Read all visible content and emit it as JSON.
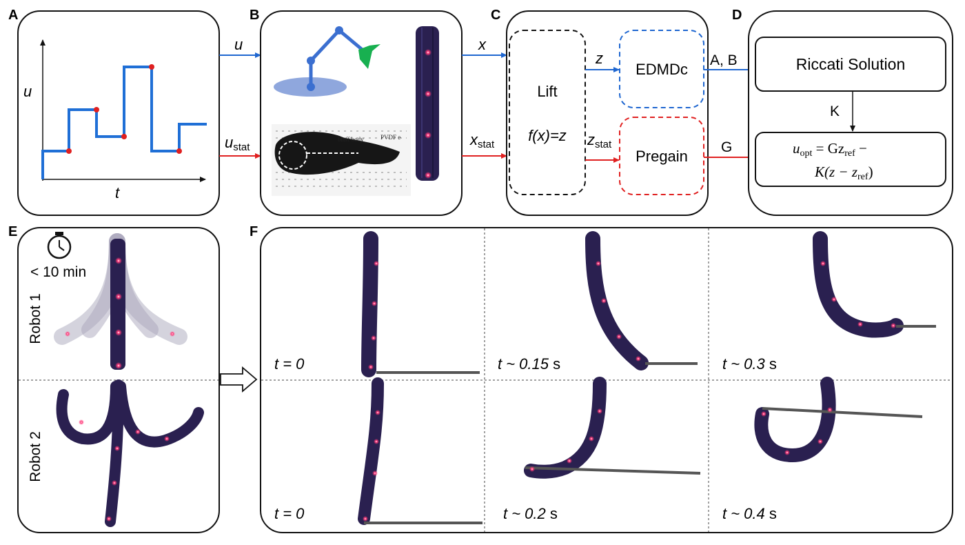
{
  "panels": {
    "a": {
      "letter": "A",
      "y_label": "u",
      "x_label": "t"
    },
    "b": {
      "letter": "B",
      "flow_text": "bluff body",
      "flow_text2": "PVDF e"
    },
    "c": {
      "letter": "C",
      "lift_title": "Lift",
      "lift_func": "f(x)=z",
      "edmdc": "EDMDc",
      "pregain": "Pregain"
    },
    "d": {
      "letter": "D",
      "riccati": "Riccati Solution",
      "k_label": "K",
      "law_line1_u": "u",
      "law_line1_sub": "opt",
      "law_line1_rest": " = Gz",
      "law_line1_sub2": "ref",
      "law_line1_end": " −",
      "law_line2_a": "K(z − z",
      "law_line2_sub": "ref",
      "law_line2_b": ")"
    },
    "e": {
      "letter": "E",
      "time_text": "< 10 min",
      "robot1": "Robot 1",
      "robot2": "Robot 2"
    },
    "f": {
      "letter": "F",
      "times": [
        "t = 0",
        "t ~ 0.15",
        "t ~ 0.3",
        "t = 0",
        "t ~ 0.2",
        "t ~ 0.4"
      ],
      "unit": "s"
    }
  },
  "arrows": {
    "u": "u",
    "u_stat_base": "u",
    "u_stat_sub": "stat",
    "x": "x",
    "x_stat_base": "x",
    "x_stat_sub": "stat",
    "z": "z",
    "z_stat_base": "z",
    "z_stat_sub": "stat",
    "ab": "A, B",
    "g": "G"
  },
  "colors": {
    "blue": "#1e66d0",
    "red": "#e02020",
    "robot": "#2a2050",
    "led": "#ff2a6a",
    "step": "#1f6fd6"
  }
}
